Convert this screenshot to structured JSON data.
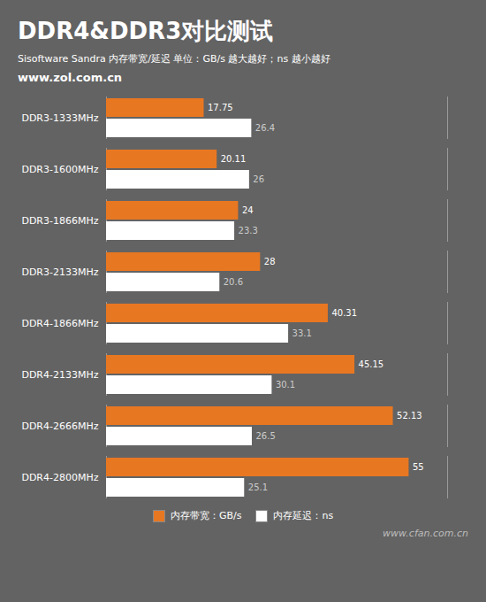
{
  "chart_data": {
    "type": "bar",
    "orientation": "horizontal",
    "title": "DDR4&DDR3对比测试",
    "subtitle": "Sisoftware Sandra 内存带宽/延迟    单位：GB/s 越大越好；ns 越小越好",
    "annotations": [
      "www.zol.com.cn",
      "www.cfan.com.cn"
    ],
    "categories": [
      "DDR3-1333MHz",
      "DDR3-1600MHz",
      "DDR3-1866MHz",
      "DDR3-2133MHz",
      "DDR4-1866MHz",
      "DDR4-2133MHz",
      "DDR4-2666MHz",
      "DDR4-2800MHz"
    ],
    "series": [
      {
        "name": "内存带宽：GB/s",
        "color": "#E87722",
        "values": [
          17.75,
          20.11,
          24,
          28,
          40.31,
          45.15,
          52.13,
          55
        ]
      },
      {
        "name": "内存延迟：ns",
        "color": "#FFFFFF",
        "values": [
          26.4,
          26,
          23.3,
          20.6,
          33.1,
          30.1,
          26.5,
          25.1
        ]
      }
    ],
    "xlim": [
      0,
      62
    ],
    "tick_labels": "y",
    "data_labels": true,
    "grid": false,
    "legend": "bottom"
  }
}
